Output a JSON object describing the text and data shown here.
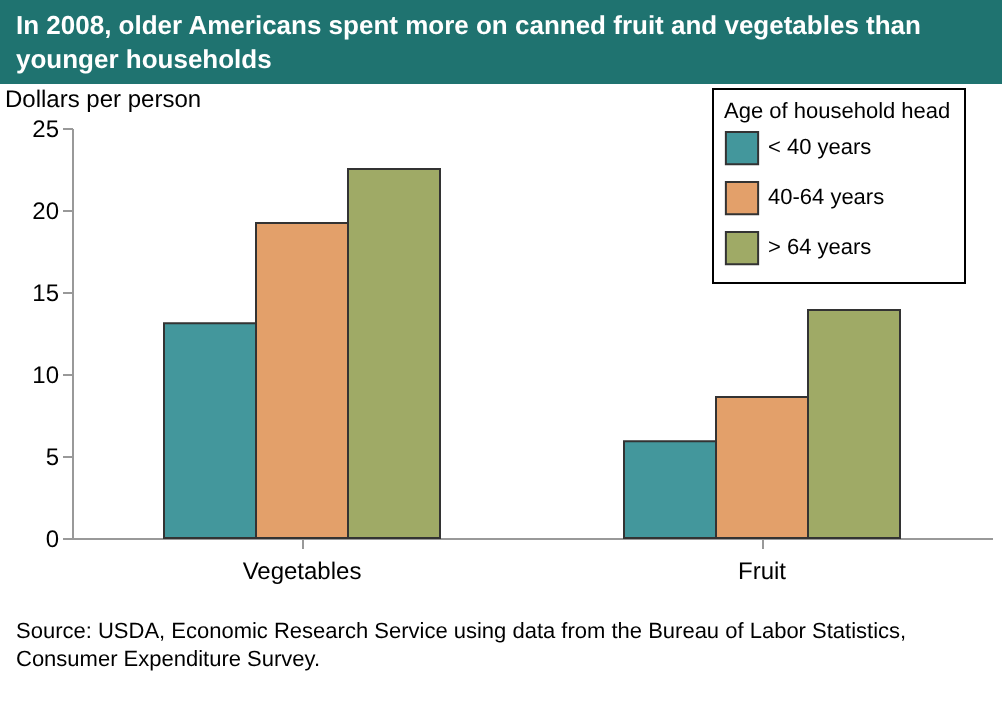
{
  "chart_data": {
    "type": "bar",
    "title": "In 2008, older Americans spent more on canned fruit and vegetables than younger households",
    "ylabel": "Dollars per person",
    "legend_title": "Age of household head",
    "categories": [
      "Vegetables",
      "Fruit"
    ],
    "series": [
      {
        "name": "< 40 years",
        "color": "#43979c",
        "values": [
          13.1,
          5.9
        ]
      },
      {
        "name": "40-64 years",
        "color": "#e3a06a",
        "values": [
          19.2,
          8.6
        ]
      },
      {
        "name": "> 64 years",
        "color": "#9faa66",
        "values": [
          22.5,
          13.9
        ]
      }
    ],
    "ylim": [
      0,
      25
    ],
    "yticks": [
      0,
      5,
      10,
      15,
      20,
      25
    ],
    "grid": false,
    "legend": "top right",
    "annotations": [
      "Source: USDA, Economic Research Service using data from the Bureau of Labor Statistics, Consumer Expenditure Survey."
    ]
  }
}
